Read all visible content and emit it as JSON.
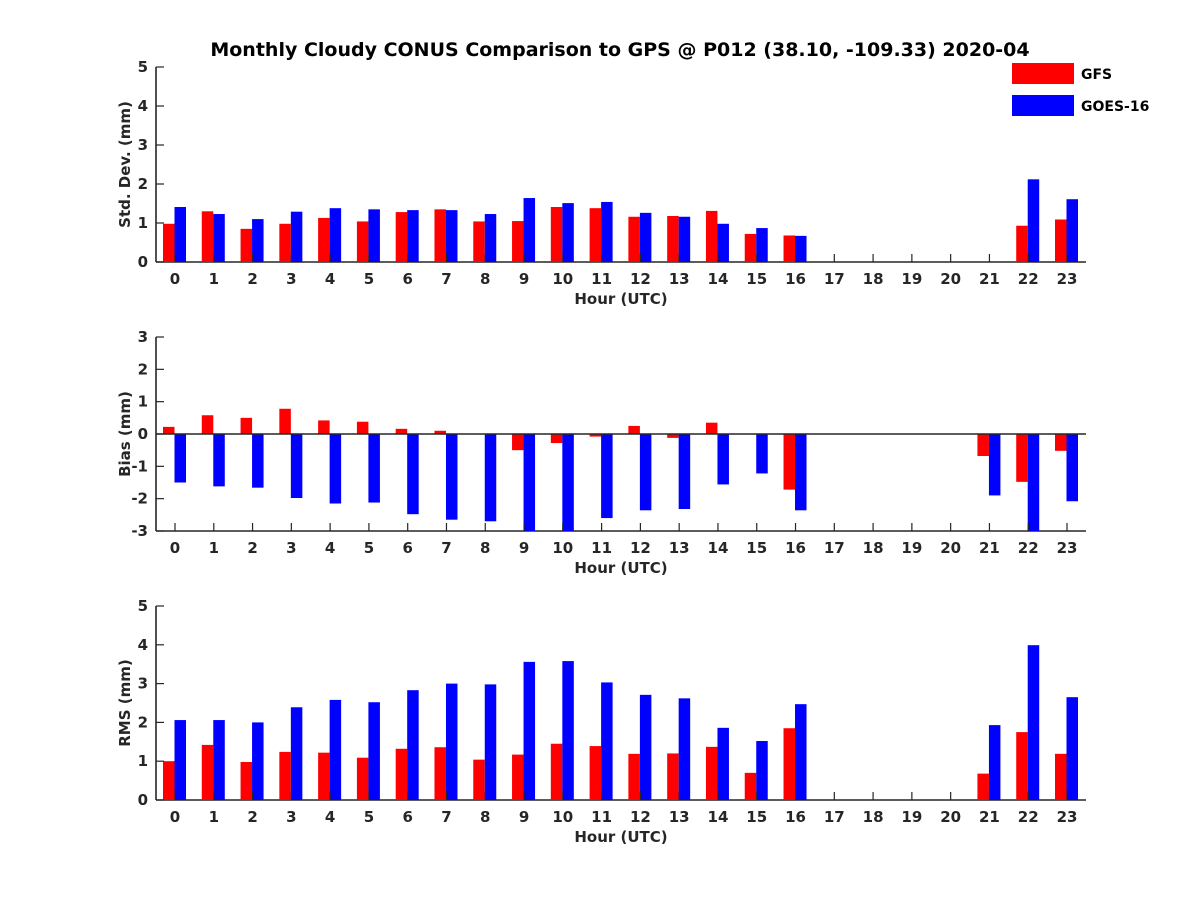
{
  "chart_data": {
    "title": "Monthly Cloudy CONUS Comparison to GPS @ P012 (38.10, -109.33) 2020-04",
    "legend": {
      "placement": "top-right",
      "entries": [
        {
          "name": "GFS",
          "color": "#ff0000"
        },
        {
          "name": "GOES-16",
          "color": "#0000ff"
        }
      ]
    },
    "panels": [
      {
        "type": "bar",
        "ylabel": "Std. Dev. (mm)",
        "xlabel": "Hour (UTC)",
        "ylim": [
          0,
          5
        ],
        "yticks": [
          0,
          1,
          2,
          3,
          4,
          5
        ],
        "categories": [
          "0",
          "1",
          "2",
          "3",
          "4",
          "5",
          "6",
          "7",
          "8",
          "9",
          "10",
          "11",
          "12",
          "13",
          "14",
          "15",
          "16",
          "17",
          "18",
          "19",
          "20",
          "21",
          "22",
          "23"
        ],
        "series": [
          {
            "name": "GFS",
            "color": "#ff0000",
            "values": [
              0.98,
              1.3,
              0.85,
              0.98,
              1.13,
              1.04,
              1.28,
              1.35,
              1.04,
              1.05,
              1.41,
              1.38,
              1.16,
              1.18,
              1.31,
              0.72,
              0.68,
              null,
              null,
              null,
              null,
              null,
              0.93,
              1.09
            ]
          },
          {
            "name": "GOES-16",
            "color": "#0000ff",
            "values": [
              1.41,
              1.23,
              1.1,
              1.29,
              1.38,
              1.35,
              1.33,
              1.33,
              1.23,
              1.64,
              1.51,
              1.54,
              1.26,
              1.16,
              0.98,
              0.87,
              0.67,
              null,
              null,
              null,
              null,
              null,
              2.12,
              1.61
            ]
          }
        ]
      },
      {
        "type": "bar",
        "ylabel": "Bias (mm)",
        "xlabel": "Hour (UTC)",
        "ylim": [
          -3,
          3
        ],
        "yticks": [
          -3,
          -2,
          -1,
          0,
          1,
          2,
          3
        ],
        "zero_line": true,
        "categories": [
          "0",
          "1",
          "2",
          "3",
          "4",
          "5",
          "6",
          "7",
          "8",
          "9",
          "10",
          "11",
          "12",
          "13",
          "14",
          "15",
          "16",
          "17",
          "18",
          "19",
          "20",
          "21",
          "22",
          "23"
        ],
        "series": [
          {
            "name": "GFS",
            "color": "#ff0000",
            "values": [
              0.22,
              0.58,
              0.5,
              0.78,
              0.42,
              0.38,
              0.16,
              0.1,
              0.0,
              -0.5,
              -0.28,
              -0.08,
              0.25,
              -0.12,
              0.35,
              0.0,
              -1.72,
              null,
              null,
              null,
              null,
              -0.68,
              -1.48,
              -0.52
            ]
          },
          {
            "name": "GOES-16",
            "color": "#0000ff",
            "values": [
              -1.5,
              -1.62,
              -1.66,
              -1.98,
              -2.15,
              -2.12,
              -2.48,
              -2.65,
              -2.7,
              -3.0,
              -3.0,
              -2.6,
              -2.36,
              -2.32,
              -1.56,
              -1.22,
              -2.36,
              null,
              null,
              null,
              null,
              -1.9,
              -3.0,
              -2.08
            ]
          }
        ]
      },
      {
        "type": "bar",
        "ylabel": "RMS (mm)",
        "xlabel": "Hour (UTC)",
        "ylim": [
          0,
          5
        ],
        "yticks": [
          0,
          1,
          2,
          3,
          4,
          5
        ],
        "categories": [
          "0",
          "1",
          "2",
          "3",
          "4",
          "5",
          "6",
          "7",
          "8",
          "9",
          "10",
          "11",
          "12",
          "13",
          "14",
          "15",
          "16",
          "17",
          "18",
          "19",
          "20",
          "21",
          "22",
          "23"
        ],
        "series": [
          {
            "name": "GFS",
            "color": "#ff0000",
            "values": [
              1.0,
              1.42,
              0.98,
              1.24,
              1.22,
              1.09,
              1.32,
              1.36,
              1.04,
              1.17,
              1.45,
              1.39,
              1.19,
              1.2,
              1.37,
              0.7,
              1.85,
              null,
              null,
              null,
              null,
              0.68,
              1.75,
              1.19
            ]
          },
          {
            "name": "GOES-16",
            "color": "#0000ff",
            "values": [
              2.06,
              2.06,
              2.0,
              2.39,
              2.58,
              2.52,
              2.83,
              3.0,
              2.98,
              3.56,
              3.58,
              3.03,
              2.71,
              2.62,
              1.86,
              1.52,
              2.47,
              null,
              null,
              null,
              null,
              1.93,
              3.99,
              2.65
            ]
          }
        ]
      }
    ]
  }
}
